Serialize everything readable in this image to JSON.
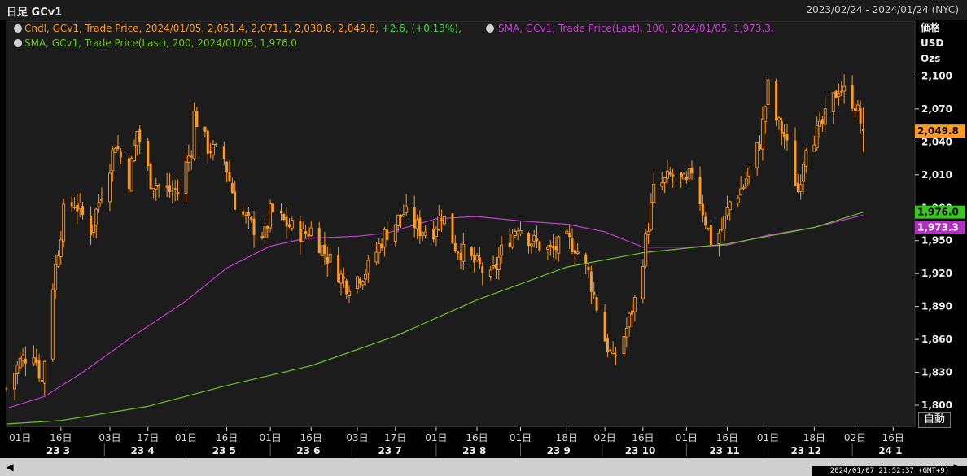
{
  "header": {
    "title": "日足 GCv1",
    "range": "2023/02/24 - 2024/01/24 (NYC)"
  },
  "legend": {
    "line1_candle": "Cndl, GCv1, Trade Price, 2024/01/05, 2,051.4, 2,071.1, 2,030.8, 2,049.8,",
    "line1_change": " +2.6, (+0.13%),",
    "line1_sma100": "SMA, GCv1, Trade Price(Last),  100, 2024/01/05, 1,973.3,",
    "line2_sma200": "SMA, GCv1, Trade Price(Last),  200, 2024/01/05, 1,976.0"
  },
  "axis_header": {
    "line1": "価格",
    "line2": "USD",
    "line3": "Ozs"
  },
  "auto_button": "自動",
  "status_text": "2024/01/07 21:52:37 (GMT+9)",
  "colors": {
    "background": "#000000",
    "plot_bg": "#1c1c1c",
    "candle": "#ff9a1a",
    "sma100": "#c33fd0",
    "sma200": "#6ec21e",
    "change": "#3ddc3d",
    "last_tag": "#ff9a1a",
    "sma100_tag": "#b52ec4",
    "sma200_tag": "#36c81c"
  },
  "chart_data": {
    "type": "candlestick",
    "title": "日足 GCv1",
    "ylabel": "価格 USD Ozs",
    "ylim": [
      1780,
      2150
    ],
    "yticks": [
      "1,800",
      "1,830",
      "1,860",
      "1,890",
      "1,920",
      "1,950",
      "1,980",
      "2,010",
      "2,040",
      "2,070",
      "2,100"
    ],
    "ytick_values": [
      1800,
      1830,
      1860,
      1890,
      1920,
      1950,
      1980,
      2010,
      2040,
      2070,
      2100
    ],
    "xlim": [
      "2023-02-24",
      "2024-01-24"
    ],
    "day_ticks": [
      {
        "label": "01日",
        "date": "2023-03-01"
      },
      {
        "label": "16日",
        "date": "2023-03-16"
      },
      {
        "label": "03日",
        "date": "2023-04-03"
      },
      {
        "label": "17日",
        "date": "2023-04-17"
      },
      {
        "label": "01日",
        "date": "2023-05-01"
      },
      {
        "label": "16日",
        "date": "2023-05-16"
      },
      {
        "label": "01日",
        "date": "2023-06-01"
      },
      {
        "label": "16日",
        "date": "2023-06-16"
      },
      {
        "label": "03日",
        "date": "2023-07-03"
      },
      {
        "label": "17日",
        "date": "2023-07-17"
      },
      {
        "label": "01日",
        "date": "2023-08-01"
      },
      {
        "label": "16日",
        "date": "2023-08-16"
      },
      {
        "label": "01日",
        "date": "2023-09-01"
      },
      {
        "label": "18日",
        "date": "2023-09-18"
      },
      {
        "label": "02日",
        "date": "2023-10-02"
      },
      {
        "label": "16日",
        "date": "2023-10-16"
      },
      {
        "label": "01日",
        "date": "2023-11-01"
      },
      {
        "label": "16日",
        "date": "2023-11-16"
      },
      {
        "label": "01日",
        "date": "2023-12-01"
      },
      {
        "label": "18日",
        "date": "2023-12-18"
      },
      {
        "label": "02日",
        "date": "2024-01-02"
      },
      {
        "label": "16日",
        "date": "2024-01-16"
      }
    ],
    "month_ticks": [
      {
        "label": "23 3",
        "date": "2023-03-15"
      },
      {
        "label": "23 4",
        "date": "2023-04-15"
      },
      {
        "label": "23 5",
        "date": "2023-05-15"
      },
      {
        "label": "23 6",
        "date": "2023-06-15"
      },
      {
        "label": "23 7",
        "date": "2023-07-15"
      },
      {
        "label": "23 8",
        "date": "2023-08-15"
      },
      {
        "label": "23 9",
        "date": "2023-09-15"
      },
      {
        "label": "23 10",
        "date": "2023-10-15"
      },
      {
        "label": "23 11",
        "date": "2023-11-15"
      },
      {
        "label": "23 12",
        "date": "2023-12-15"
      },
      {
        "label": "24 1",
        "date": "2024-01-15"
      }
    ],
    "month_separators": [
      "2023-04-01",
      "2023-05-01",
      "2023-06-01",
      "2023-07-01",
      "2023-08-01",
      "2023-09-01",
      "2023-10-01",
      "2023-11-01",
      "2023-12-01",
      "2024-01-01"
    ],
    "close_anchors": [
      [
        "2023-02-24",
        1815
      ],
      [
        "2023-03-01",
        1840
      ],
      [
        "2023-03-06",
        1850
      ],
      [
        "2023-03-09",
        1820
      ],
      [
        "2023-03-13",
        1910
      ],
      [
        "2023-03-17",
        1975
      ],
      [
        "2023-03-21",
        1985
      ],
      [
        "2023-03-27",
        1960
      ],
      [
        "2023-04-03",
        2020
      ],
      [
        "2023-04-05",
        2040
      ],
      [
        "2023-04-10",
        2005
      ],
      [
        "2023-04-13",
        2050
      ],
      [
        "2023-04-18",
        2005
      ],
      [
        "2023-04-24",
        1995
      ],
      [
        "2023-04-28",
        1995
      ],
      [
        "2023-05-03",
        2035
      ],
      [
        "2023-05-04",
        2065
      ],
      [
        "2023-05-09",
        2035
      ],
      [
        "2023-05-15",
        2025
      ],
      [
        "2023-05-19",
        1985
      ],
      [
        "2023-05-24",
        1965
      ],
      [
        "2023-05-30",
        1955
      ],
      [
        "2023-06-01",
        1975
      ],
      [
        "2023-06-02",
        1975
      ],
      [
        "2023-06-07",
        1965
      ],
      [
        "2023-06-13",
        1955
      ],
      [
        "2023-06-16",
        1960
      ],
      [
        "2023-06-22",
        1935
      ],
      [
        "2023-06-29",
        1910
      ],
      [
        "2023-07-05",
        1920
      ],
      [
        "2023-07-07",
        1925
      ],
      [
        "2023-07-13",
        1955
      ],
      [
        "2023-07-20",
        1975
      ],
      [
        "2023-07-26",
        1960
      ],
      [
        "2023-07-31",
        1960
      ],
      [
        "2023-08-03",
        1975
      ],
      [
        "2023-08-08",
        1945
      ],
      [
        "2023-08-15",
        1930
      ],
      [
        "2023-08-21",
        1915
      ],
      [
        "2023-08-25",
        1940
      ],
      [
        "2023-08-31",
        1965
      ],
      [
        "2023-09-05",
        1950
      ],
      [
        "2023-09-12",
        1940
      ],
      [
        "2023-09-18",
        1950
      ],
      [
        "2023-09-21",
        1945
      ],
      [
        "2023-09-26",
        1920
      ],
      [
        "2023-10-02",
        1860
      ],
      [
        "2023-10-05",
        1840
      ],
      [
        "2023-10-10",
        1870
      ],
      [
        "2023-10-13",
        1895
      ],
      [
        "2023-10-16",
        1935
      ],
      [
        "2023-10-20",
        1995
      ],
      [
        "2023-10-27",
        2010
      ],
      [
        "2023-11-01",
        2000
      ],
      [
        "2023-11-03",
        2015
      ],
      [
        "2023-11-10",
        1950
      ],
      [
        "2023-11-14",
        1960
      ],
      [
        "2023-11-17",
        1985
      ],
      [
        "2023-11-22",
        2000
      ],
      [
        "2023-11-28",
        2040
      ],
      [
        "2023-12-01",
        2090
      ],
      [
        "2023-12-04",
        2060
      ],
      [
        "2023-12-07",
        2045
      ],
      [
        "2023-12-12",
        1995
      ],
      [
        "2023-12-15",
        2040
      ],
      [
        "2023-12-20",
        2050
      ],
      [
        "2023-12-27",
        2090
      ],
      [
        "2024-01-02",
        2075
      ],
      [
        "2024-01-05",
        2049.8
      ]
    ],
    "last": {
      "date": "2024-01-05",
      "open": 2051.4,
      "high": 2071.1,
      "low": 2030.8,
      "close": 2049.8,
      "change": 2.6,
      "change_pct": 0.13
    },
    "series": [
      {
        "name": "Cndl, GCv1, Trade Price",
        "kind": "candlestick",
        "color": "#ff9a1a"
      },
      {
        "name": "SMA, GCv1, Trade Price(Last),  100",
        "kind": "line",
        "color": "#c33fd0",
        "points": [
          [
            "2023-02-24",
            1797
          ],
          [
            "2023-03-10",
            1808
          ],
          [
            "2023-03-24",
            1830
          ],
          [
            "2023-04-11",
            1862
          ],
          [
            "2023-05-01",
            1895
          ],
          [
            "2023-05-16",
            1925
          ],
          [
            "2023-06-01",
            1945
          ],
          [
            "2023-06-14",
            1952
          ],
          [
            "2023-07-03",
            1954
          ],
          [
            "2023-07-14",
            1957
          ],
          [
            "2023-08-01",
            1970
          ],
          [
            "2023-08-16",
            1972
          ],
          [
            "2023-09-01",
            1968
          ],
          [
            "2023-09-18",
            1965
          ],
          [
            "2023-10-02",
            1958
          ],
          [
            "2023-10-16",
            1944
          ],
          [
            "2023-11-01",
            1944
          ],
          [
            "2023-11-16",
            1946
          ],
          [
            "2023-12-01",
            1955
          ],
          [
            "2023-12-18",
            1962
          ],
          [
            "2024-01-05",
            1973.3
          ]
        ]
      },
      {
        "name": "SMA, GCv1, Trade Price(Last),  200",
        "kind": "line",
        "color": "#6ec21e",
        "points": [
          [
            "2023-02-24",
            1783
          ],
          [
            "2023-03-16",
            1786
          ],
          [
            "2023-04-17",
            1799
          ],
          [
            "2023-05-16",
            1818
          ],
          [
            "2023-06-16",
            1836
          ],
          [
            "2023-07-17",
            1863
          ],
          [
            "2023-08-16",
            1896
          ],
          [
            "2023-09-18",
            1926
          ],
          [
            "2023-10-16",
            1939
          ],
          [
            "2023-11-16",
            1947
          ],
          [
            "2023-12-18",
            1962
          ],
          [
            "2024-01-05",
            1976.0
          ]
        ]
      }
    ],
    "price_tags": [
      {
        "label": "2,049.8",
        "value": 2049.8,
        "color": "#ff9a1a",
        "text_color": "#000000"
      },
      {
        "label": "1,976.0",
        "value": 1976.0,
        "color": "#36c81c",
        "text_color": "#000000"
      },
      {
        "label": "1,973.3",
        "value": 1973.3,
        "color": "#b52ec4",
        "text_color": "#ffffff"
      }
    ],
    "grid": false,
    "legend_position": "top-left"
  }
}
